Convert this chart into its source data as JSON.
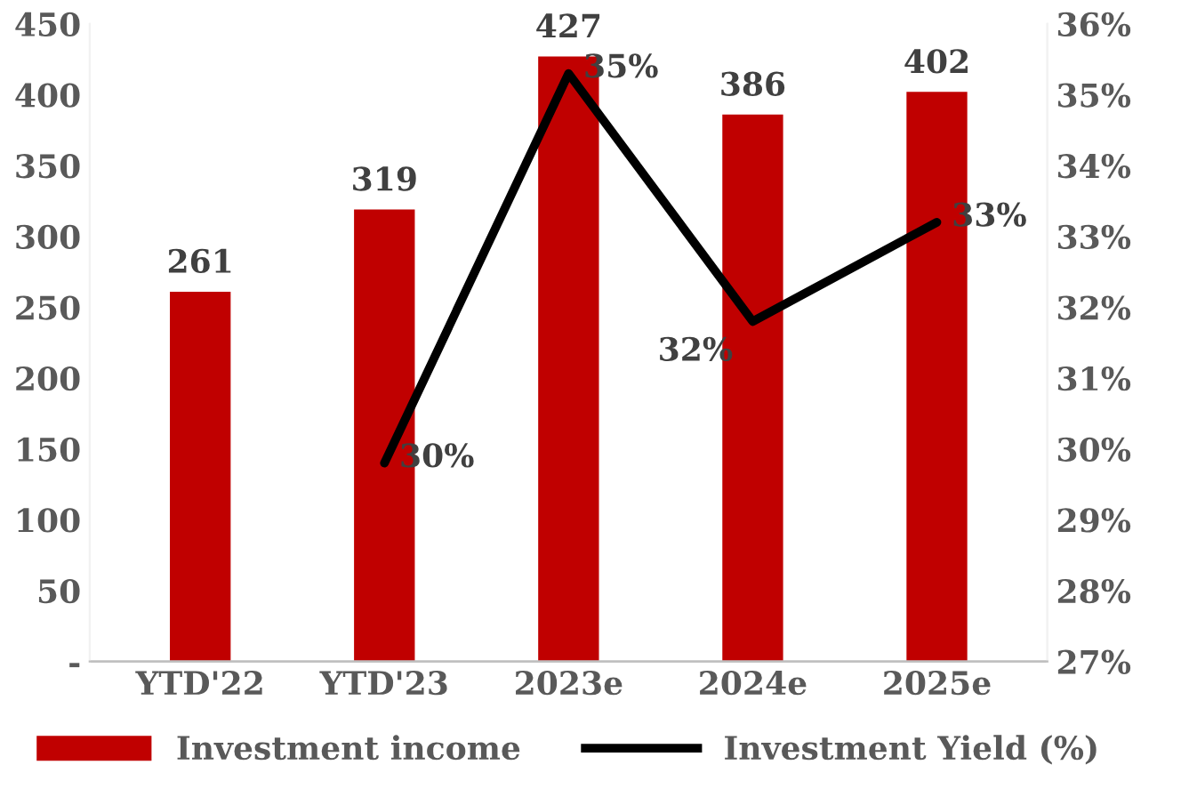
{
  "chart_data": {
    "type": "bar",
    "categories": [
      "YTD'22",
      "YTD'23",
      "2023e",
      "2024e",
      "2025e"
    ],
    "series": [
      {
        "name": "Investment income",
        "color": "#c00000",
        "values": [
          261,
          319,
          427,
          386,
          402
        ],
        "value_labels": [
          "261",
          "319",
          "427",
          "386",
          "402"
        ]
      },
      {
        "name": "Investment Yield (%)",
        "type": "line",
        "axis": "y2",
        "color": "#000000",
        "values": [
          null,
          29.8,
          35.3,
          31.8,
          33.2
        ],
        "value_labels": [
          null,
          "30%",
          "35%",
          "32%",
          "33%"
        ]
      }
    ],
    "ylim": [
      0,
      450
    ],
    "yticks": [
      {
        "value": 0,
        "label": "-"
      },
      50,
      100,
      150,
      200,
      250,
      300,
      350,
      400,
      450
    ],
    "y2lim": [
      27,
      36
    ],
    "y2ticks": [
      {
        "value": 27,
        "label": "27%"
      },
      {
        "value": 28,
        "label": "28%"
      },
      {
        "value": 29,
        "label": "29%"
      },
      {
        "value": 30,
        "label": "30%"
      },
      {
        "value": 31,
        "label": "31%"
      },
      {
        "value": 32,
        "label": "32%"
      },
      {
        "value": 33,
        "label": "33%"
      },
      {
        "value": 34,
        "label": "34%"
      },
      {
        "value": 35,
        "label": "35%"
      },
      {
        "value": 36,
        "label": "36%"
      }
    ],
    "grid": false,
    "legend": "bottom",
    "marker": "none",
    "line_style": "solid"
  }
}
